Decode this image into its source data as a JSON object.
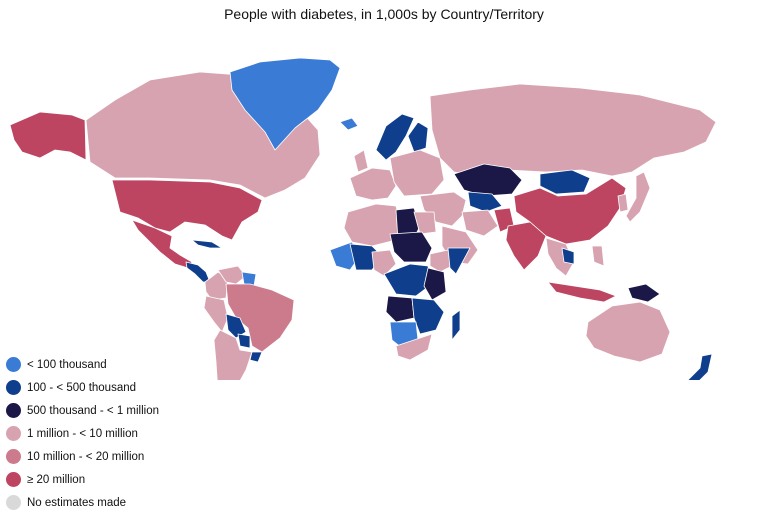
{
  "title": "People with diabetes, in 1,000s by Country/Territory",
  "colors": {
    "lt100k": "#3a7bd5",
    "k100_500": "#0e3e8c",
    "k500_1m": "#1b1848",
    "m1_10": "#d8a3b1",
    "m10_20": "#cc7b8c",
    "ge20m": "#bd4561",
    "no_est": "#d9d9d9"
  },
  "legend": [
    {
      "key": "lt100k",
      "label": "< 100 thousand"
    },
    {
      "key": "k100_500",
      "label": "100 - < 500 thousand"
    },
    {
      "key": "k500_1m",
      "label": "500 thousand - < 1 million"
    },
    {
      "key": "m1_10",
      "label": "1 million - < 10 million"
    },
    {
      "key": "m10_20",
      "label": "10 million - < 20 million"
    },
    {
      "key": "ge20m",
      "label": "≥ 20 million"
    },
    {
      "key": "no_est",
      "label": "No estimates made"
    }
  ],
  "regions": [
    {
      "name": "alaska",
      "cat": "ge20m"
    },
    {
      "name": "canada",
      "cat": "m1_10"
    },
    {
      "name": "greenland",
      "cat": "lt100k"
    },
    {
      "name": "usa",
      "cat": "ge20m"
    },
    {
      "name": "mexico",
      "cat": "ge20m"
    },
    {
      "name": "central-america",
      "cat": "k100_500"
    },
    {
      "name": "caribbean",
      "cat": "k100_500"
    },
    {
      "name": "colombia",
      "cat": "m1_10"
    },
    {
      "name": "venezuela",
      "cat": "m1_10"
    },
    {
      "name": "guianas",
      "cat": "lt100k"
    },
    {
      "name": "brazil",
      "cat": "m10_20"
    },
    {
      "name": "peru",
      "cat": "m1_10"
    },
    {
      "name": "bolivia",
      "cat": "k100_500"
    },
    {
      "name": "paraguay",
      "cat": "k100_500"
    },
    {
      "name": "argentina-chile",
      "cat": "m1_10"
    },
    {
      "name": "uruguay",
      "cat": "k100_500"
    },
    {
      "name": "iceland",
      "cat": "lt100k"
    },
    {
      "name": "scandinavia",
      "cat": "k100_500"
    },
    {
      "name": "finland",
      "cat": "k100_500"
    },
    {
      "name": "uk",
      "cat": "m1_10"
    },
    {
      "name": "western-europe",
      "cat": "m1_10"
    },
    {
      "name": "eastern-europe",
      "cat": "m1_10"
    },
    {
      "name": "russia",
      "cat": "m1_10"
    },
    {
      "name": "kazakhstan",
      "cat": "k500_1m"
    },
    {
      "name": "mongolia",
      "cat": "k100_500"
    },
    {
      "name": "china",
      "cat": "ge20m"
    },
    {
      "name": "japan",
      "cat": "m1_10"
    },
    {
      "name": "korea",
      "cat": "m1_10"
    },
    {
      "name": "turkey-middle-east",
      "cat": "m1_10"
    },
    {
      "name": "iran",
      "cat": "m1_10"
    },
    {
      "name": "central-asia",
      "cat": "k100_500"
    },
    {
      "name": "pakistan",
      "cat": "ge20m"
    },
    {
      "name": "india",
      "cat": "ge20m"
    },
    {
      "name": "arabia",
      "cat": "m1_10"
    },
    {
      "name": "southeast-asia",
      "cat": "m1_10"
    },
    {
      "name": "cambodia-laos",
      "cat": "k100_500"
    },
    {
      "name": "indonesia",
      "cat": "ge20m"
    },
    {
      "name": "papua",
      "cat": "k500_1m"
    },
    {
      "name": "philippines",
      "cat": "m1_10"
    },
    {
      "name": "australia",
      "cat": "m1_10"
    },
    {
      "name": "new-zealand",
      "cat": "k100_500"
    },
    {
      "name": "north-africa",
      "cat": "m1_10"
    },
    {
      "name": "libya",
      "cat": "k500_1m"
    },
    {
      "name": "egypt",
      "cat": "m1_10"
    },
    {
      "name": "west-africa",
      "cat": "lt100k"
    },
    {
      "name": "sahel",
      "cat": "k100_500"
    },
    {
      "name": "nigeria",
      "cat": "m1_10"
    },
    {
      "name": "sudan-chad",
      "cat": "k500_1m"
    },
    {
      "name": "ethiopia",
      "cat": "m1_10"
    },
    {
      "name": "horn",
      "cat": "k100_500"
    },
    {
      "name": "central-africa",
      "cat": "k100_500"
    },
    {
      "name": "east-africa",
      "cat": "k500_1m"
    },
    {
      "name": "angola",
      "cat": "k500_1m"
    },
    {
      "name": "namibia-botswana",
      "cat": "lt100k"
    },
    {
      "name": "zambia-moz",
      "cat": "k100_500"
    },
    {
      "name": "south-africa",
      "cat": "m1_10"
    },
    {
      "name": "madagascar",
      "cat": "k100_500"
    }
  ]
}
